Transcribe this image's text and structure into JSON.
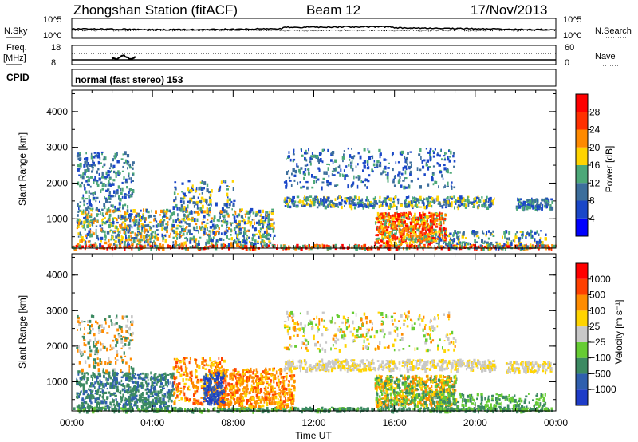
{
  "header": {
    "station": "Zhongshan Station (fitACF)",
    "beam": "Beam 12",
    "date": "17/Nov/2013"
  },
  "panels": {
    "nsky": {
      "label": "N.Sky",
      "ticks": [
        "10^5",
        "10^0"
      ]
    },
    "nsearch": {
      "label": "N.Search",
      "ticks": [
        "10^5",
        "10^0"
      ]
    },
    "freq": {
      "label_top": "Freq.",
      "label_unit": "[MHz]",
      "ticks": [
        "18",
        "8"
      ]
    },
    "nave": {
      "label": "Nave",
      "ticks": [
        "60",
        "0"
      ]
    },
    "cpid": {
      "label": "CPID",
      "value": "normal (fast stereo) 153"
    }
  },
  "chart_data": [
    {
      "type": "heatmap",
      "title": "",
      "xlabel": "Time UT",
      "ylabel": "Slant Range [km]",
      "x_ticks": [
        "00:00",
        "04:00",
        "08:00",
        "12:00",
        "16:00",
        "20:00",
        "00:00"
      ],
      "y_ticks": [
        1000,
        2000,
        3000,
        4000
      ],
      "xlim": [
        0,
        24
      ],
      "ylim": [
        180,
        4600
      ],
      "colorbar": {
        "label": "Power [dB]",
        "ticks": [
          "28",
          "24",
          "20",
          "16",
          "12",
          "8",
          "4"
        ],
        "colors": [
          "#0000ff",
          "#1a47c8",
          "#3c6e9c",
          "#4ca878",
          "#ffd400",
          "#ff8a00",
          "#ff3000",
          "#ff0000"
        ],
        "range": [
          0,
          30
        ]
      }
    },
    {
      "type": "heatmap",
      "title": "",
      "xlabel": "Time UT",
      "ylabel": "Slant Range [km]",
      "x_ticks": [
        "00:00",
        "04:00",
        "08:00",
        "12:00",
        "16:00",
        "20:00",
        "00:00"
      ],
      "y_ticks": [
        1000,
        2000,
        3000,
        4000
      ],
      "xlim": [
        0,
        24
      ],
      "ylim": [
        180,
        4600
      ],
      "colorbar": {
        "label": "Velocity [m s⁻¹]",
        "ticks": [
          "1000",
          "500",
          "100",
          "25",
          "−25",
          "−100",
          "−500",
          "−1000"
        ],
        "colors": [
          "#1e3cc8",
          "#2f5fae",
          "#3c8a62",
          "#66cc33",
          "#c8c8c8",
          "#ffd400",
          "#ff8c00",
          "#ff4000",
          "#ff0000"
        ],
        "range": [
          -1000,
          1000
        ]
      }
    }
  ],
  "colors": {
    "power": [
      "#0000ff",
      "#1a47c8",
      "#3c6e9c",
      "#4ca878",
      "#ffd400",
      "#ff8a00",
      "#ff3000",
      "#ff0000"
    ],
    "velocity": [
      "#1e3cc8",
      "#2f5fae",
      "#3c8a62",
      "#66cc33",
      "#c8c8c8",
      "#ffd400",
      "#ff8c00",
      "#ff4000",
      "#ff0000"
    ]
  }
}
